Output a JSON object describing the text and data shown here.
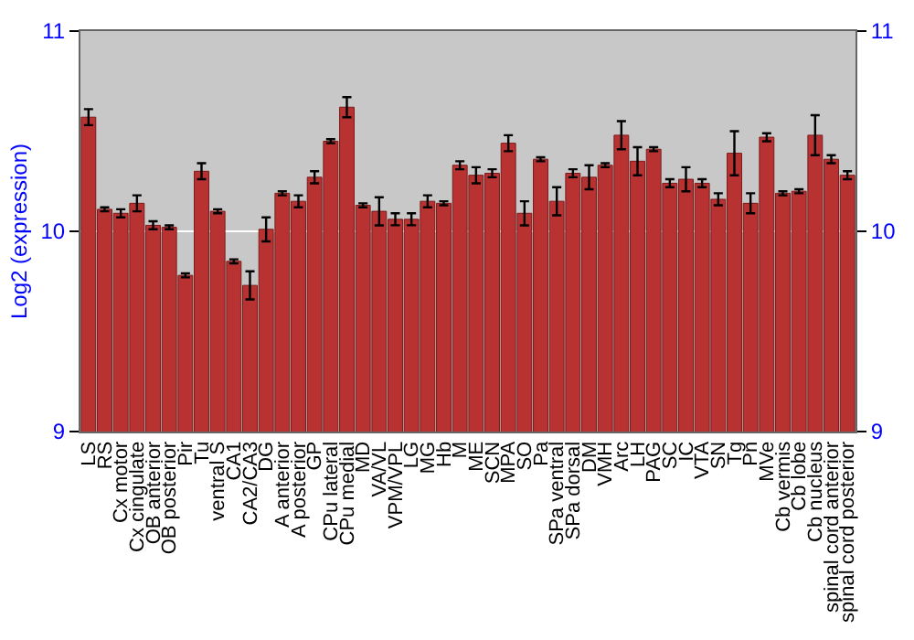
{
  "chart_data": {
    "type": "bar",
    "ylabel": "Log2 (expression)",
    "categories": [
      "LS",
      "RS",
      "Cx motor",
      "Cx cingulate",
      "OB anterior",
      "OB posterior",
      "Pir",
      "Tu",
      "ventral S",
      "CA1",
      "CA2/CA3",
      "DG",
      "A anterior",
      "A posterior",
      "GP",
      "CPu lateral",
      "CPu medial",
      "MD",
      "VA/VL",
      "VPM/VPL",
      "LG",
      "MG",
      "Hb",
      "M",
      "ME",
      "SCN",
      "MPA",
      "SO",
      "Pa",
      "SPa ventral",
      "SPa dorsal",
      "DM",
      "VMH",
      "Arc",
      "LH",
      "PAG",
      "SC",
      "IC",
      "VTA",
      "SN",
      "Tg",
      "Pn",
      "MVe",
      "Cb vermis",
      "Cb lobe",
      "Cb nucleus",
      "spinal cord anterior",
      "spinal cord posterior"
    ],
    "values": [
      10.57,
      10.11,
      10.09,
      10.14,
      10.03,
      10.02,
      9.78,
      10.3,
      10.1,
      9.85,
      9.73,
      10.01,
      10.19,
      10.15,
      10.27,
      10.45,
      10.62,
      10.13,
      10.1,
      10.06,
      10.06,
      10.15,
      10.14,
      10.33,
      10.28,
      10.29,
      10.44,
      10.09,
      10.36,
      10.15,
      10.29,
      10.27,
      10.33,
      10.48,
      10.35,
      10.41,
      10.24,
      10.26,
      10.24,
      10.16,
      10.39,
      10.14,
      10.47,
      10.19,
      10.2,
      10.48,
      10.36,
      10.28
    ],
    "errors": [
      0.04,
      0.01,
      0.02,
      0.04,
      0.02,
      0.01,
      0.01,
      0.04,
      0.01,
      0.01,
      0.07,
      0.06,
      0.01,
      0.03,
      0.03,
      0.01,
      0.05,
      0.01,
      0.07,
      0.03,
      0.03,
      0.03,
      0.01,
      0.02,
      0.04,
      0.02,
      0.04,
      0.06,
      0.01,
      0.07,
      0.02,
      0.06,
      0.01,
      0.07,
      0.07,
      0.01,
      0.02,
      0.06,
      0.02,
      0.03,
      0.11,
      0.05,
      0.02,
      0.01,
      0.01,
      0.1,
      0.02,
      0.02
    ],
    "color": "#b83232",
    "ylim": [
      9,
      11
    ],
    "yticks": [
      9,
      10,
      11
    ],
    "y2lim": [
      9,
      11
    ],
    "y2ticks": [
      9,
      10,
      11
    ],
    "grid": "y",
    "legend": false
  }
}
